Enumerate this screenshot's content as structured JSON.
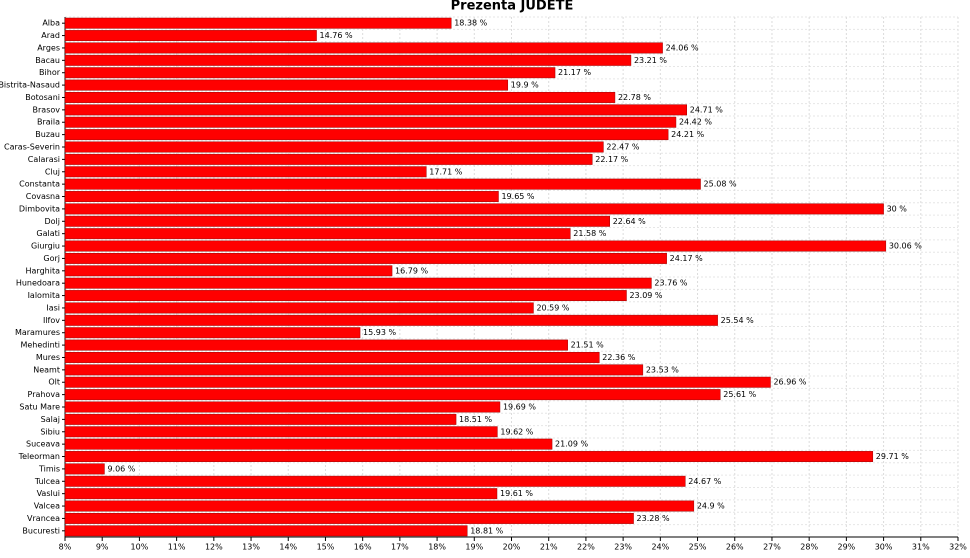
{
  "chart_data": {
    "type": "hbar",
    "title": "Prezenta JUDETE",
    "color": "#ff0000",
    "grid": true,
    "categories": [
      "Alba",
      "Arad",
      "Arges",
      "Bacau",
      "Bihor",
      "Bistrita-Nasaud",
      "Botosani",
      "Brasov",
      "Braila",
      "Buzau",
      "Caras-Severin",
      "Calarasi",
      "Cluj",
      "Constanta",
      "Covasna",
      "Dimbovita",
      "Dolj",
      "Galati",
      "Giurgiu",
      "Gorj",
      "Harghita",
      "Hunedoara",
      "Ialomita",
      "Iasi",
      "Ilfov",
      "Maramures",
      "Mehedinti",
      "Mures",
      "Neamt",
      "Olt",
      "Prahova",
      "Satu Mare",
      "Salaj",
      "Sibiu",
      "Suceava",
      "Teleorman",
      "Timis",
      "Tulcea",
      "Vaslui",
      "Valcea",
      "Vrancea",
      "Bucuresti"
    ],
    "values": [
      18.38,
      14.76,
      24.06,
      23.21,
      21.17,
      19.9,
      22.78,
      24.71,
      24.42,
      24.21,
      22.47,
      22.17,
      17.71,
      25.08,
      19.65,
      30,
      22.64,
      21.58,
      30.06,
      24.17,
      16.79,
      23.76,
      23.09,
      20.59,
      25.54,
      15.93,
      21.51,
      22.36,
      23.53,
      26.96,
      25.61,
      19.69,
      18.51,
      19.62,
      21.09,
      29.71,
      9.06,
      24.67,
      19.61,
      24.9,
      23.28,
      18.81
    ],
    "value_labels": [
      "18.38 %",
      "14.76 %",
      "24.06 %",
      "23.21 %",
      "21.17 %",
      "19.9 %",
      "22.78 %",
      "24.71 %",
      "24.42 %",
      "24.21 %",
      "22.47 %",
      "22.17 %",
      "17.71 %",
      "25.08 %",
      "19.65 %",
      "30 %",
      "22.64 %",
      "21.58 %",
      "30.06 %",
      "24.17 %",
      "16.79 %",
      "23.76 %",
      "23.09 %",
      "20.59 %",
      "25.54 %",
      "15.93 %",
      "21.51 %",
      "22.36 %",
      "23.53 %",
      "26.96 %",
      "25.61 %",
      "19.69 %",
      "18.51 %",
      "19.62 %",
      "21.09 %",
      "29.71 %",
      "9.06 %",
      "24.67 %",
      "19.61 %",
      "24.9 %",
      "23.28 %",
      "18.81 %"
    ],
    "xlim": [
      8,
      32
    ],
    "xticks": [
      {
        "value": 8,
        "label": "8%"
      },
      {
        "value": 9,
        "label": "9%"
      },
      {
        "value": 10,
        "label": "10%"
      },
      {
        "value": 11,
        "label": "11%"
      },
      {
        "value": 12,
        "label": "12%"
      },
      {
        "value": 13,
        "label": "13%"
      },
      {
        "value": 14,
        "label": "14%"
      },
      {
        "value": 15,
        "label": "15%"
      },
      {
        "value": 16,
        "label": "16%"
      },
      {
        "value": 17,
        "label": "17%"
      },
      {
        "value": 18,
        "label": "18%"
      },
      {
        "value": 19,
        "label": "19%"
      },
      {
        "value": 20,
        "label": "20%"
      },
      {
        "value": 21,
        "label": "21%"
      },
      {
        "value": 22,
        "label": "22%"
      },
      {
        "value": 23,
        "label": "23%"
      },
      {
        "value": 24,
        "label": "24%"
      },
      {
        "value": 25,
        "label": "25%"
      },
      {
        "value": 26,
        "label": "26%"
      },
      {
        "value": 27,
        "label": "27%"
      },
      {
        "value": 28,
        "label": "28%"
      },
      {
        "value": 29,
        "label": "29%"
      },
      {
        "value": 30,
        "label": "30%"
      },
      {
        "value": 31,
        "label": "31%"
      },
      {
        "value": 32,
        "label": "32%"
      }
    ]
  }
}
